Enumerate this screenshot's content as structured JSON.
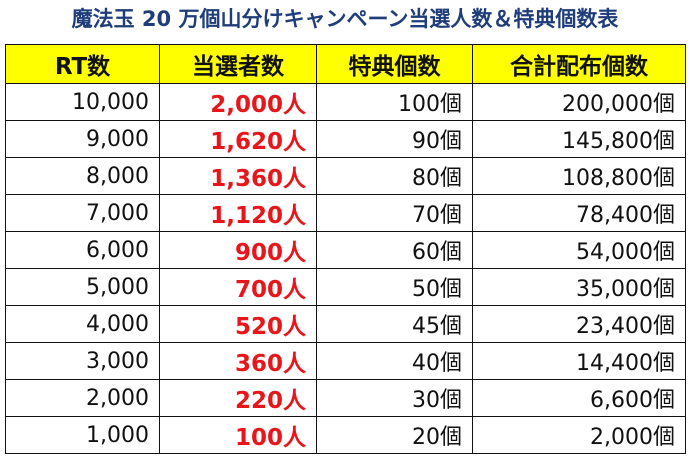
{
  "title": "魔法玉 20 万個山分けキャンペーン当選人数＆特典個数表",
  "table": {
    "headers": [
      "RT数",
      "当選者数",
      "特典個数",
      "合計配布個数"
    ],
    "rows": [
      [
        "10,000",
        "2,000人",
        "100個",
        "200,000個"
      ],
      [
        "9,000",
        "1,620人",
        "90個",
        "145,800個"
      ],
      [
        "8,000",
        "1,360人",
        "80個",
        "108,800個"
      ],
      [
        "7,000",
        "1,120人",
        "70個",
        "78,400個"
      ],
      [
        "6,000",
        "900人",
        "60個",
        "54,000個"
      ],
      [
        "5,000",
        "700人",
        "50個",
        "35,000個"
      ],
      [
        "4,000",
        "520人",
        "45個",
        "23,400個"
      ],
      [
        "3,000",
        "360人",
        "40個",
        "14,400個"
      ],
      [
        "2,000",
        "220人",
        "30個",
        "6,600個"
      ],
      [
        "1,000",
        "100人",
        "20個",
        "2,000個"
      ]
    ]
  },
  "colors": {
    "title": "#1f3d7a",
    "header_bg": "#ffff00",
    "winners_text": "#e8161b",
    "border": "#111111"
  }
}
